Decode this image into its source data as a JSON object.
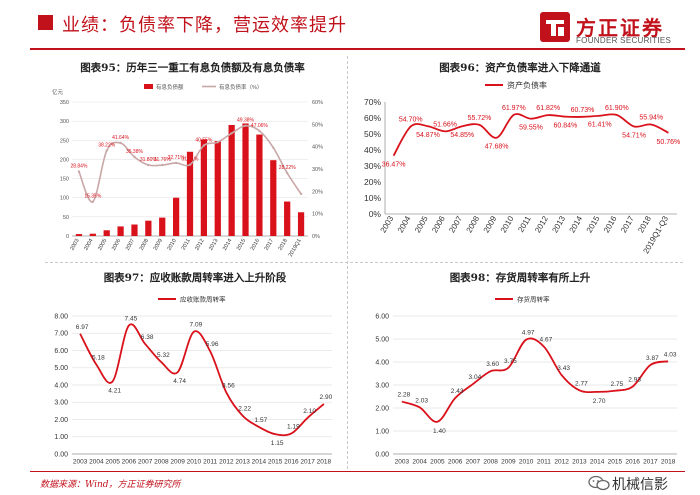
{
  "header": {
    "title": "业绩：负债率下降，营运效率提升",
    "logo_cn": "方正证券",
    "logo_en": "FOUNDER SECURITIES"
  },
  "colors": {
    "accent": "#c1111b",
    "series_line": "#d9111b",
    "bar": "#d9111b",
    "axis": "#9a9a9a",
    "grid": "#e3e3e3"
  },
  "footer": {
    "source": "数据来源：Wind，方正证券研究所",
    "watermark": "机械信影"
  },
  "chart_data": [
    {
      "id": "fig95",
      "type": "bar+line",
      "title": "图表95：历年三一重工有息负债额及有息负债率",
      "unit_label": "亿元",
      "categories": [
        "2003",
        "2004",
        "2005",
        "2006",
        "2007",
        "2008",
        "2009",
        "2010",
        "2011",
        "2012",
        "2013",
        "2014",
        "2015",
        "2016",
        "2017",
        "2018",
        "2019Q1"
      ],
      "series": [
        {
          "name": "有息负债额",
          "axis": "left",
          "kind": "bar",
          "values": [
            5,
            6,
            15,
            25,
            30,
            40,
            48,
            100,
            220,
            252,
            248,
            290,
            294,
            265,
            198,
            90,
            62
          ]
        },
        {
          "name": "有息负债率（%）",
          "axis": "right",
          "kind": "line",
          "values": [
            28.84,
            15.35,
            38.22,
            41.64,
            35.38,
            31.8,
            31.76,
            32.71,
            31.91,
            40.55,
            42.0,
            46.0,
            49.38,
            47.06,
            39.55,
            28.22,
            18.84
          ],
          "labels": [
            "28.84%",
            "15.35%",
            "38.22%",
            "41.64%",
            "35.38%",
            "31.80%",
            "31.76%",
            "32.71%",
            "31.91%",
            "40.55%",
            "",
            "",
            "49.38%",
            "47.06%",
            "",
            "28.22%",
            ""
          ]
        }
      ],
      "ylim_left": [
        0,
        350
      ],
      "yticks_left": [
        0,
        50,
        100,
        150,
        200,
        250,
        300,
        350
      ],
      "ylim_right": [
        0,
        60
      ],
      "yticks_right": [
        "0%",
        "10%",
        "20%",
        "30%",
        "40%",
        "50%",
        "60%"
      ]
    },
    {
      "id": "fig96",
      "type": "line",
      "title": "图表96：资产负债率进入下降通道",
      "legend": "资产负债率",
      "categories": [
        "2003",
        "2004",
        "2005",
        "2006",
        "2007",
        "2008",
        "2009",
        "2010",
        "2011",
        "2012",
        "2013",
        "2014",
        "2015",
        "2016",
        "2017",
        "2018",
        "2019Q1-Q3"
      ],
      "values": [
        36.47,
        54.7,
        54.87,
        51.66,
        54.85,
        55.72,
        47.68,
        61.97,
        59.55,
        61.82,
        60.84,
        60.73,
        61.41,
        61.9,
        54.71,
        55.94,
        50.76
      ],
      "labels": [
        "36.47%",
        "54.70%",
        "54.87%",
        "51.66%",
        "54.85%",
        "55.72%",
        "47.68%",
        "61.97%",
        "59.55%",
        "61.82%",
        "60.84%",
        "60.73%",
        "61.41%",
        "61.90%",
        "54.71%",
        "55.94%",
        "50.76%"
      ],
      "label_pos": [
        "below",
        "above",
        "below",
        "above",
        "below",
        "above",
        "below",
        "above",
        "below",
        "above",
        "below",
        "above",
        "below",
        "above",
        "below",
        "above",
        "below"
      ],
      "ylim": [
        0,
        70
      ],
      "yticks": [
        "0%",
        "10%",
        "20%",
        "30%",
        "40%",
        "50%",
        "60%",
        "70%"
      ]
    },
    {
      "id": "fig97",
      "type": "line",
      "title": "图表97：应收账款周转率进入上升阶段",
      "legend": "应收账款周转率",
      "categories": [
        "2003",
        "2004",
        "2005",
        "2006",
        "2007",
        "2008",
        "2009",
        "2010",
        "2011",
        "2012",
        "2013",
        "2014",
        "2015",
        "2016",
        "2017",
        "2018"
      ],
      "values": [
        6.97,
        5.18,
        4.21,
        7.45,
        6.38,
        5.32,
        4.74,
        7.09,
        5.96,
        3.56,
        2.22,
        1.57,
        1.15,
        1.19,
        2.1,
        2.9
      ],
      "labels": [
        "6.97",
        "5.18",
        "4.21",
        "7.45",
        "6.38",
        "5.32",
        "4.74",
        "7.09",
        "5.96",
        "3.56",
        "2.22",
        "1.57",
        "1.15",
        "1.19",
        "2.10",
        "2.90"
      ],
      "ylim": [
        0,
        8
      ],
      "yticks": [
        "0.00",
        "1.00",
        "2.00",
        "3.00",
        "4.00",
        "5.00",
        "6.00",
        "7.00",
        "8.00"
      ]
    },
    {
      "id": "fig98",
      "type": "line",
      "title": "图表98：存货周转率有所上升",
      "legend": "存货周转率",
      "categories": [
        "2003",
        "2004",
        "2005",
        "2006",
        "2007",
        "2008",
        "2009",
        "2010",
        "2011",
        "2012",
        "2013",
        "2014",
        "2015",
        "2016",
        "2017",
        "2018"
      ],
      "values": [
        2.28,
        2.03,
        1.4,
        2.43,
        3.04,
        3.6,
        3.75,
        4.97,
        4.67,
        3.43,
        2.77,
        2.7,
        2.75,
        2.93,
        3.87,
        4.03
      ],
      "labels": [
        "2.28",
        "2.03",
        "1.40",
        "2.43",
        "3.04",
        "3.60",
        "3.75",
        "4.97",
        "4.67",
        "3.43",
        "2.77",
        "2.70",
        "2.75",
        "2.93",
        "3.87",
        "4.03"
      ],
      "ylim": [
        0,
        6
      ],
      "yticks": [
        "0.00",
        "1.00",
        "2.00",
        "3.00",
        "4.00",
        "5.00",
        "6.00"
      ]
    }
  ]
}
